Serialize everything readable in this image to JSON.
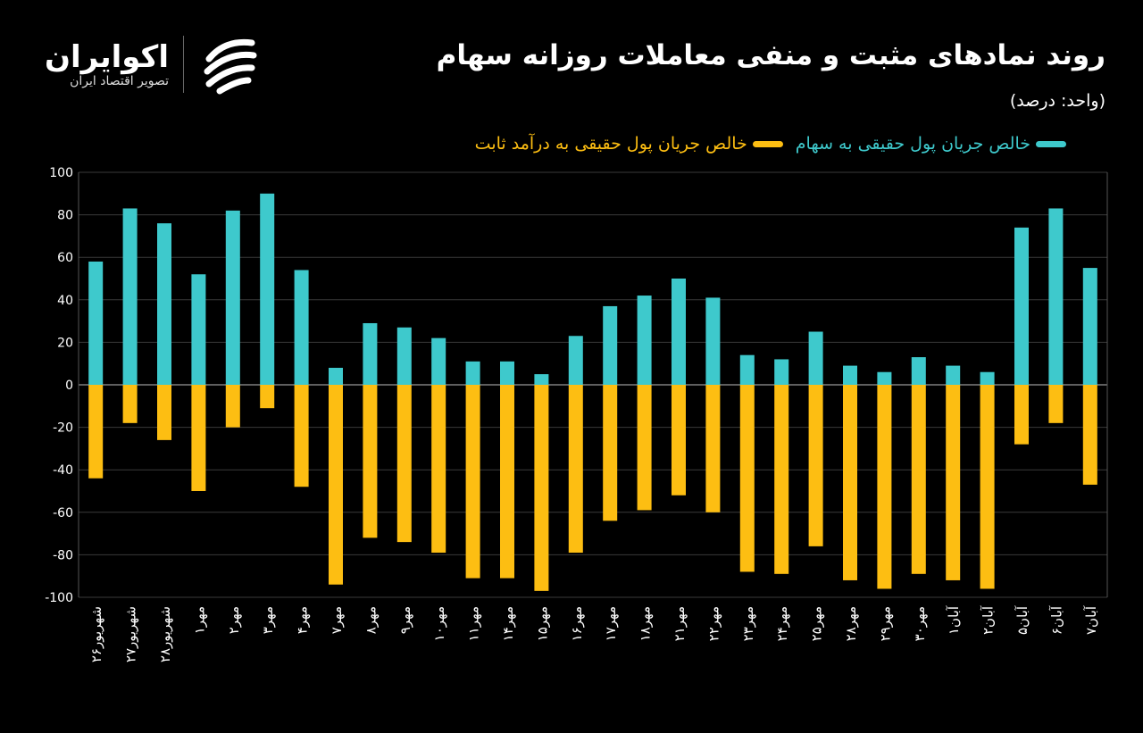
{
  "logo": {
    "name": "اکوایران",
    "tagline": "تصویر اقتصاد ایران",
    "icon": "ecoiran-swirl-icon"
  },
  "colors": {
    "equity": "#3ec9cc",
    "fixed_income": "#fdbe12",
    "background": "#000000",
    "grid": "#3a3a3a"
  },
  "chart_data": {
    "type": "bar",
    "title": "روند نمادهای مثبت و منفی معاملات روزانه سهام",
    "subtitle": "(واحد: درصد)",
    "ylim": [
      -100,
      100
    ],
    "yticks": [
      100,
      80,
      60,
      40,
      20,
      0,
      -20,
      -40,
      -60,
      -80,
      -100
    ],
    "grid": true,
    "legend_placement": "top",
    "categories": [
      "شهریور۲۶",
      "شهریور۲۷",
      "شهریور۲۸",
      "مهر۱",
      "مهر۲",
      "مهر۳",
      "مهر۴",
      "مهر۷",
      "مهر۸",
      "مهر۹",
      "مهر۱۰",
      "مهر۱۱",
      "مهر۱۴",
      "مهر۱۵",
      "مهر۱۶",
      "مهر۱۷",
      "مهر۱۸",
      "مهر۲۱",
      "مهر۲۲",
      "مهر۲۳",
      "مهر۲۴",
      "مهر۲۵",
      "مهر۲۸",
      "مهر۲۹",
      "مهر۳۰",
      "آبان۱",
      "آبان۲",
      "آبان۵",
      "آبان۶",
      "آبان۷"
    ],
    "series": [
      {
        "name": "خالص جریان پول حقیقی به سهام",
        "values": [
          58,
          83,
          76,
          52,
          82,
          90,
          54,
          8,
          29,
          27,
          22,
          11,
          11,
          5,
          23,
          37,
          42,
          50,
          41,
          14,
          12,
          25,
          9,
          6,
          13,
          9,
          6,
          74,
          83,
          55
        ]
      },
      {
        "name": "خالص جریان پول حقیقی به درآمد ثابت",
        "values": [
          -44,
          -18,
          -26,
          -50,
          -20,
          -11,
          -48,
          -94,
          -72,
          -74,
          -79,
          -91,
          -91,
          -97,
          -79,
          -64,
          -59,
          -52,
          -60,
          -88,
          -89,
          -76,
          -92,
          -96,
          -89,
          -92,
          -96,
          -28,
          -18,
          -47
        ]
      }
    ]
  }
}
